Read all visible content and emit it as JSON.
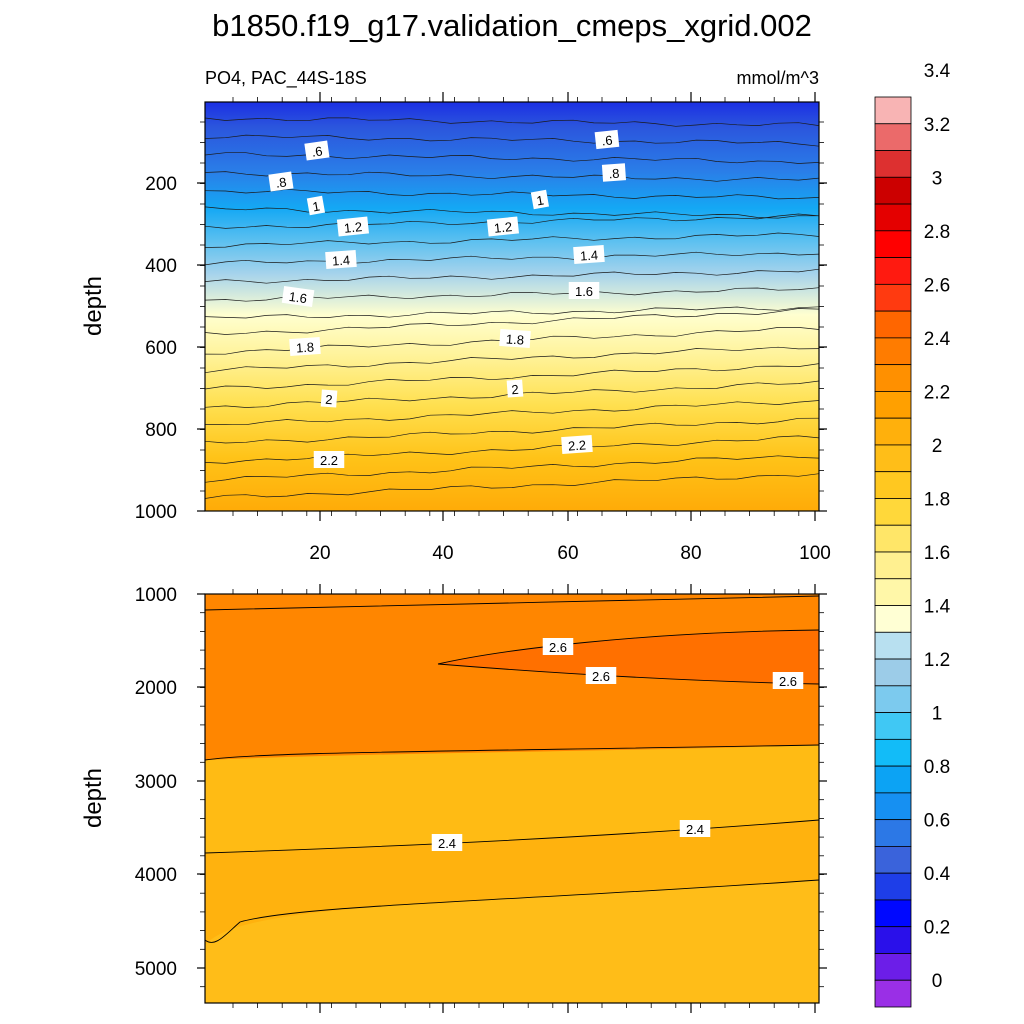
{
  "chart_data": {
    "type": "contour",
    "title": "b1850.f19_g17.validation_cmeps_xgrid.002",
    "subtitle_left": "PO4, PAC_44S-18S",
    "subtitle_right": "mmol/m^3",
    "colorbar_levels": [
      "0",
      "0.2",
      "0.4",
      "0.6",
      "0.8",
      "1",
      "1.2",
      "1.4",
      "1.6",
      "1.8",
      "2",
      "2.2",
      "2.4",
      "2.6",
      "2.8",
      "3",
      "3.2",
      "3.4"
    ],
    "colorbar_colors": [
      "#9a2fe6",
      "#6c1ee8",
      "#2a10ea",
      "#0008ff",
      "#1e3ee8",
      "#3a63db",
      "#2c78e6",
      "#1690f2",
      "#0ca3f4",
      "#12bcf8",
      "#40c8f4",
      "#7ccaee",
      "#9ccce8",
      "#b8e0f0",
      "#ffffd4",
      "#fff7a8",
      "#fff090",
      "#ffe668",
      "#ffd83a",
      "#ffc820",
      "#ffbe18",
      "#ffb00c",
      "#ffa000",
      "#ff9000",
      "#ff7c00",
      "#ff6600",
      "#ff3a10",
      "#ff1a10",
      "#ff0000",
      "#e40000",
      "#cc0000",
      "#dd3030",
      "#eb6a6a",
      "#f8b4b4"
    ],
    "panels": [
      {
        "ylabel": "depth",
        "yticks": [
          "200",
          "400",
          "600",
          "800",
          "1000"
        ],
        "xticks": [
          "20",
          "40",
          "60",
          "80",
          "100"
        ],
        "contour_labels": [
          ".6",
          ".6",
          ".8",
          ".8",
          "1",
          "1",
          "1.2",
          "1.2",
          "1.4",
          "1.4",
          "1.6",
          "1.6",
          "1.8",
          "1.8",
          "2",
          "2",
          "2.2",
          "2.2"
        ]
      },
      {
        "ylabel": "depth",
        "yticks": [
          "1000",
          "2000",
          "3000",
          "4000",
          "5000"
        ],
        "contour_labels": [
          "2.6",
          "2.6",
          "2.6",
          "2.4",
          "2.4"
        ]
      }
    ]
  }
}
